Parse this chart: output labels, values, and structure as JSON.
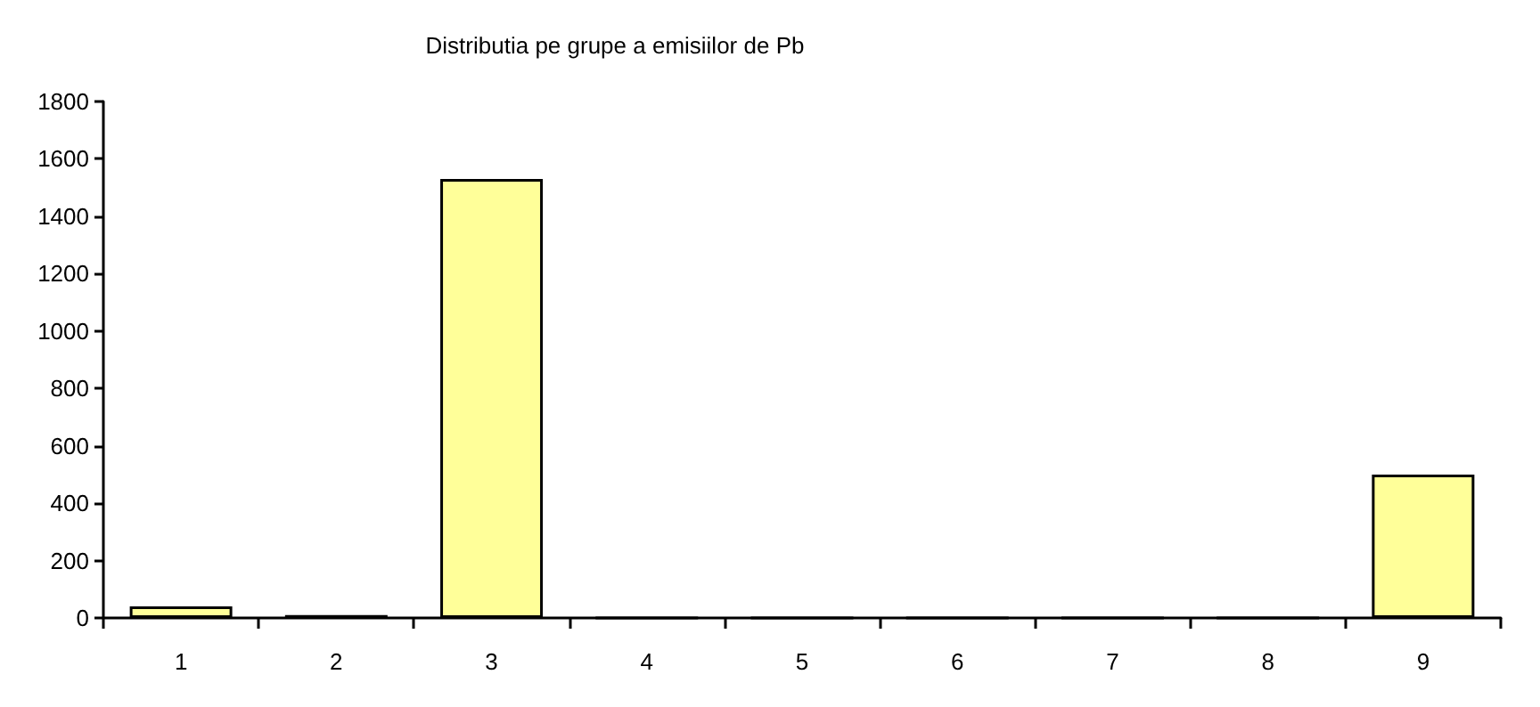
{
  "chart_data": {
    "type": "bar",
    "title": "Distributia pe grupe a emisiilor de Pb",
    "categories": [
      "1",
      "2",
      "3",
      "4",
      "5",
      "6",
      "7",
      "8",
      "9"
    ],
    "values": [
      40,
      10,
      1530,
      0,
      0,
      0,
      0,
      0,
      500
    ],
    "color": "#ffff99",
    "ylim": [
      0,
      1800
    ],
    "yticks": [
      0,
      200,
      400,
      600,
      800,
      1000,
      1200,
      1400,
      1600,
      1800
    ],
    "grid": false
  }
}
